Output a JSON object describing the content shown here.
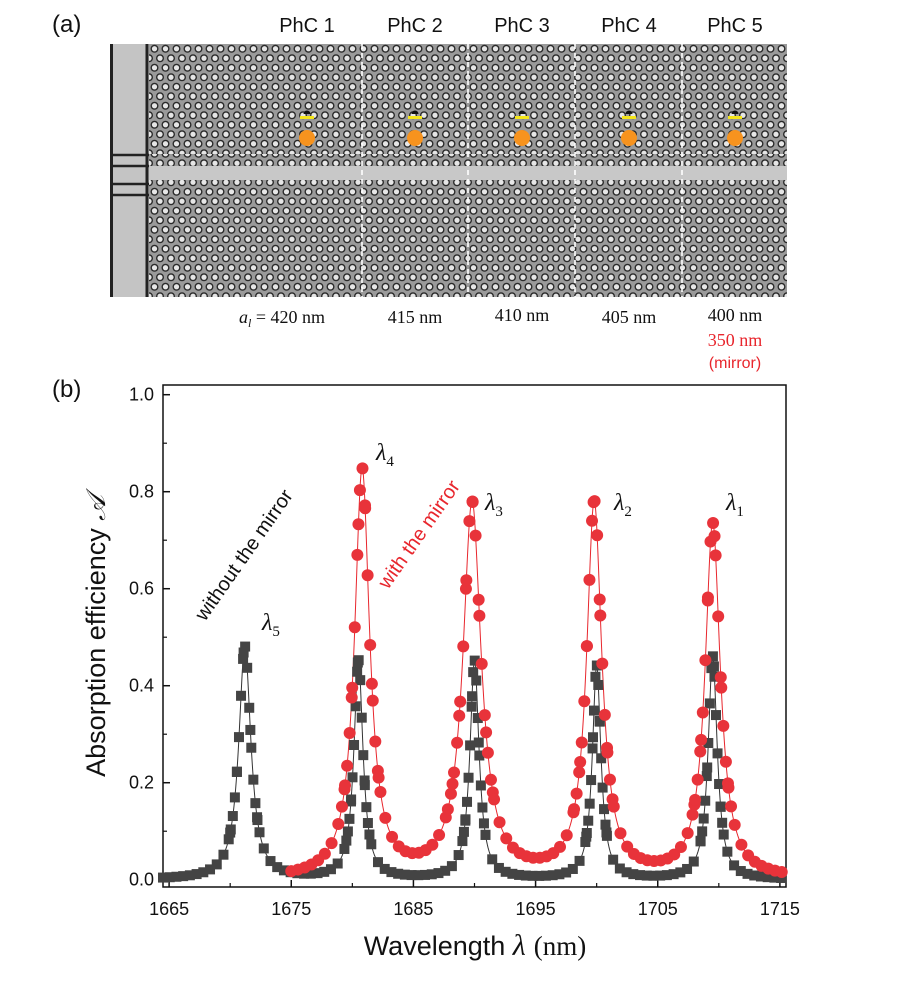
{
  "panel_a": {
    "label": "(a)",
    "columns": [
      {
        "title": "PhC 1",
        "lattice": "a",
        "lattice_sub": "l",
        "lattice_eq": " = 420 nm"
      },
      {
        "title": "PhC 2",
        "lattice": "415 nm"
      },
      {
        "title": "PhC 3",
        "lattice": "410 nm"
      },
      {
        "title": "PhC 4",
        "lattice": "405 nm"
      },
      {
        "title": "PhC 5",
        "lattice": "400 nm"
      }
    ],
    "mirror_lattice": "350 nm",
    "mirror_label": "(mirror)",
    "colors": {
      "mirror": "#e8262d",
      "absorber": "#f7931e",
      "marker": "#f5e61a"
    }
  },
  "panel_b": {
    "label": "(b)",
    "annotations": {
      "without": "without the mirror",
      "with": "with the mirror"
    },
    "peak_labels": [
      {
        "sym": "λ",
        "sub": "5"
      },
      {
        "sym": "λ",
        "sub": "4"
      },
      {
        "sym": "λ",
        "sub": "3"
      },
      {
        "sym": "λ",
        "sub": "2"
      },
      {
        "sym": "λ",
        "sub": "1"
      }
    ],
    "xlabel": {
      "text": "Wavelength ",
      "sym": "λ",
      "unit": "(nm)"
    },
    "ylabel": {
      "text": "Absorption efficiency ",
      "sym": "𝒜"
    }
  },
  "chart_data": {
    "type": "scatter",
    "xlim": [
      1664.5,
      1715.5
    ],
    "ylim": [
      -0.015,
      1.02
    ],
    "xticks": [
      1665,
      1675,
      1685,
      1695,
      1705,
      1715
    ],
    "yticks": [
      0.0,
      0.2,
      0.4,
      0.6,
      0.8,
      1.0
    ],
    "xtick_labels": [
      "1665",
      "1675",
      "1685",
      "1695",
      "1705",
      "1715"
    ],
    "ytick_labels": [
      "0.0",
      "0.2",
      "0.4",
      "0.6",
      "0.8",
      "1.0"
    ],
    "grid": false,
    "series": [
      {
        "name": "without the mirror",
        "marker": "square",
        "color": "#444444",
        "peaks": [
          {
            "center": 1671.2,
            "height": 0.48,
            "hwhm": 0.6
          },
          {
            "center": 1680.5,
            "height": 0.45,
            "hwhm": 0.45
          },
          {
            "center": 1690.0,
            "height": 0.45,
            "hwhm": 0.45
          },
          {
            "center": 1700.0,
            "height": 0.44,
            "hwhm": 0.42
          },
          {
            "center": 1709.5,
            "height": 0.46,
            "hwhm": 0.45
          }
        ],
        "x_range": [
          1664.5,
          1715.5
        ]
      },
      {
        "name": "with the mirror",
        "marker": "circle",
        "color": "#e8333a",
        "peaks": [
          {
            "center": 1680.8,
            "height": 0.84,
            "hwhm": 0.75
          },
          {
            "center": 1689.8,
            "height": 0.77,
            "hwhm": 0.9
          },
          {
            "center": 1699.8,
            "height": 0.77,
            "hwhm": 0.75
          },
          {
            "center": 1709.5,
            "height": 0.73,
            "hwhm": 0.75
          }
        ],
        "x_range": [
          1675.0,
          1715.5
        ]
      }
    ]
  }
}
